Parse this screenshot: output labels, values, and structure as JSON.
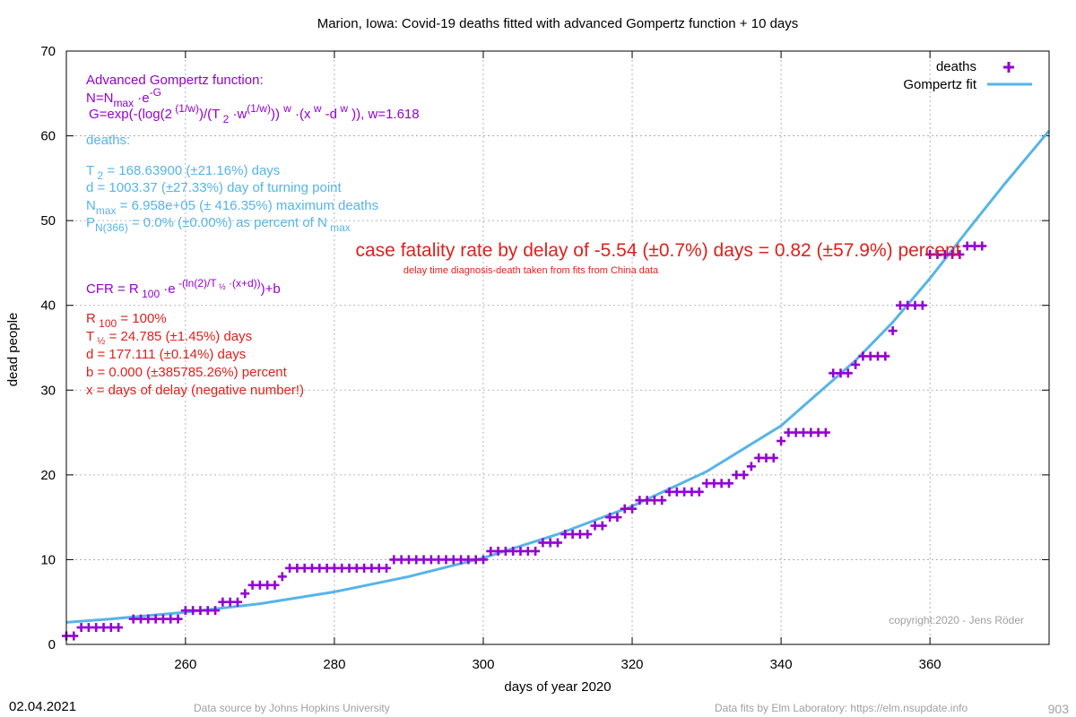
{
  "chart_data": {
    "type": "scatter",
    "title": "Marion,  Iowa: Covid-19 deaths fitted with advanced Gompertz function + 10 days",
    "xlabel": "days of year 2020",
    "ylabel": "dead people",
    "xlim": [
      244,
      376
    ],
    "ylim": [
      0,
      70
    ],
    "x_ticks": [
      260,
      280,
      300,
      320,
      340,
      360
    ],
    "y_ticks": [
      0,
      10,
      20,
      30,
      40,
      50,
      60,
      70
    ],
    "grid": true,
    "legend_position": "top-right",
    "legend": {
      "deaths": "deaths",
      "fit": "Gompertz fit"
    },
    "colors": {
      "deaths": "#9400d3",
      "fit": "#56b4e9",
      "purple_text": "#9400d3",
      "blue_text": "#56b4e9",
      "red_text": "#e0201b"
    },
    "series": [
      {
        "name": "deaths",
        "points": [
          [
            244,
            1
          ],
          [
            245,
            1
          ],
          [
            246,
            2
          ],
          [
            247,
            2
          ],
          [
            248,
            2
          ],
          [
            249,
            2
          ],
          [
            250,
            2
          ],
          [
            251,
            2
          ],
          [
            253,
            3
          ],
          [
            254,
            3
          ],
          [
            255,
            3
          ],
          [
            256,
            3
          ],
          [
            257,
            3
          ],
          [
            258,
            3
          ],
          [
            259,
            3
          ],
          [
            260,
            4
          ],
          [
            261,
            4
          ],
          [
            262,
            4
          ],
          [
            263,
            4
          ],
          [
            264,
            4
          ],
          [
            265,
            5
          ],
          [
            266,
            5
          ],
          [
            267,
            5
          ],
          [
            268,
            6
          ],
          [
            269,
            7
          ],
          [
            270,
            7
          ],
          [
            271,
            7
          ],
          [
            272,
            7
          ],
          [
            273,
            8
          ],
          [
            274,
            9
          ],
          [
            275,
            9
          ],
          [
            276,
            9
          ],
          [
            277,
            9
          ],
          [
            278,
            9
          ],
          [
            279,
            9
          ],
          [
            280,
            9
          ],
          [
            281,
            9
          ],
          [
            282,
            9
          ],
          [
            283,
            9
          ],
          [
            284,
            9
          ],
          [
            285,
            9
          ],
          [
            286,
            9
          ],
          [
            287,
            9
          ],
          [
            288,
            10
          ],
          [
            289,
            10
          ],
          [
            290,
            10
          ],
          [
            291,
            10
          ],
          [
            292,
            10
          ],
          [
            293,
            10
          ],
          [
            294,
            10
          ],
          [
            295,
            10
          ],
          [
            296,
            10
          ],
          [
            297,
            10
          ],
          [
            298,
            10
          ],
          [
            299,
            10
          ],
          [
            300,
            10
          ],
          [
            301,
            11
          ],
          [
            302,
            11
          ],
          [
            303,
            11
          ],
          [
            304,
            11
          ],
          [
            305,
            11
          ],
          [
            306,
            11
          ],
          [
            307,
            11
          ],
          [
            308,
            12
          ],
          [
            309,
            12
          ],
          [
            310,
            12
          ],
          [
            311,
            13
          ],
          [
            312,
            13
          ],
          [
            313,
            13
          ],
          [
            314,
            13
          ],
          [
            315,
            14
          ],
          [
            316,
            14
          ],
          [
            317,
            15
          ],
          [
            318,
            15
          ],
          [
            319,
            16
          ],
          [
            320,
            16
          ],
          [
            321,
            17
          ],
          [
            322,
            17
          ],
          [
            323,
            17
          ],
          [
            324,
            17
          ],
          [
            325,
            18
          ],
          [
            326,
            18
          ],
          [
            327,
            18
          ],
          [
            328,
            18
          ],
          [
            329,
            18
          ],
          [
            330,
            19
          ],
          [
            331,
            19
          ],
          [
            332,
            19
          ],
          [
            333,
            19
          ],
          [
            334,
            20
          ],
          [
            335,
            20
          ],
          [
            336,
            21
          ],
          [
            337,
            22
          ],
          [
            338,
            22
          ],
          [
            339,
            22
          ],
          [
            340,
            24
          ],
          [
            341,
            25
          ],
          [
            342,
            25
          ],
          [
            343,
            25
          ],
          [
            344,
            25
          ],
          [
            345,
            25
          ],
          [
            346,
            25
          ],
          [
            347,
            32
          ],
          [
            348,
            32
          ],
          [
            349,
            32
          ],
          [
            350,
            33
          ],
          [
            351,
            34
          ],
          [
            352,
            34
          ],
          [
            353,
            34
          ],
          [
            354,
            34
          ],
          [
            355,
            37
          ],
          [
            356,
            40
          ],
          [
            357,
            40
          ],
          [
            358,
            40
          ],
          [
            359,
            40
          ],
          [
            360,
            46
          ],
          [
            361,
            46
          ],
          [
            362,
            46
          ],
          [
            363,
            46
          ],
          [
            364,
            46
          ],
          [
            365,
            47
          ],
          [
            366,
            47
          ],
          [
            367,
            47
          ]
        ]
      },
      {
        "name": "Gompertz fit",
        "points": [
          [
            244,
            2.6
          ],
          [
            250,
            3.0
          ],
          [
            260,
            3.8
          ],
          [
            270,
            4.8
          ],
          [
            280,
            6.2
          ],
          [
            290,
            8.0
          ],
          [
            300,
            10.2
          ],
          [
            310,
            13.0
          ],
          [
            320,
            16.3
          ],
          [
            330,
            20.4
          ],
          [
            340,
            25.8
          ],
          [
            350,
            33.5
          ],
          [
            355,
            38.0
          ],
          [
            360,
            43.2
          ],
          [
            365,
            48.8
          ],
          [
            370,
            54.3
          ],
          [
            376,
            60.6
          ]
        ]
      }
    ],
    "formula_panel": {
      "line1": "Advanced Gompertz function:",
      "line2": "N=N max ·e -G",
      "line3": "G=exp(-(log(2 (1/w) )/(T 2 ·w (1/w) )) w ·(x w -d w )), w=1.618"
    },
    "fit_params": {
      "heading": "deaths:",
      "t2": "T 2 = 168.63900 (±21.16%) days",
      "d": "d = 1003.37 (±27.33%) day of turning point",
      "nmax": "N max = 6.958e+05 (± 416.35%) maximum deaths",
      "p": "P N(366) = 0.0% (±0.00%) as percent of N max"
    },
    "cfr_headline": "case fatality rate by delay of -5.54 (±0.7%) days = 0.82 (±57.9%) percent",
    "cfr_subline": "delay time diagnosis-death taken from fits from China data",
    "cfr_formula": "CFR = R 100 ·e -(ln(2)/T ½ ·(x+d)) +b",
    "cfr_params": {
      "r100": "R 100 = 100%",
      "thalf": "T ½ = 24.785 (±1.45%) days",
      "d": "d = 177.111 (±0.14%) days",
      "b": "b = 0.000 (±385785.26%) percent",
      "x": "x = days of delay (negative number!)"
    },
    "copyright": "copyright:2020 - Jens Röder"
  },
  "footer": {
    "date": "02.04.2021",
    "source": "Data source by Johns Hopkins University",
    "fits": "Data fits by Elm Laboratory: https://elm.nsupdate.info",
    "id": "903"
  }
}
